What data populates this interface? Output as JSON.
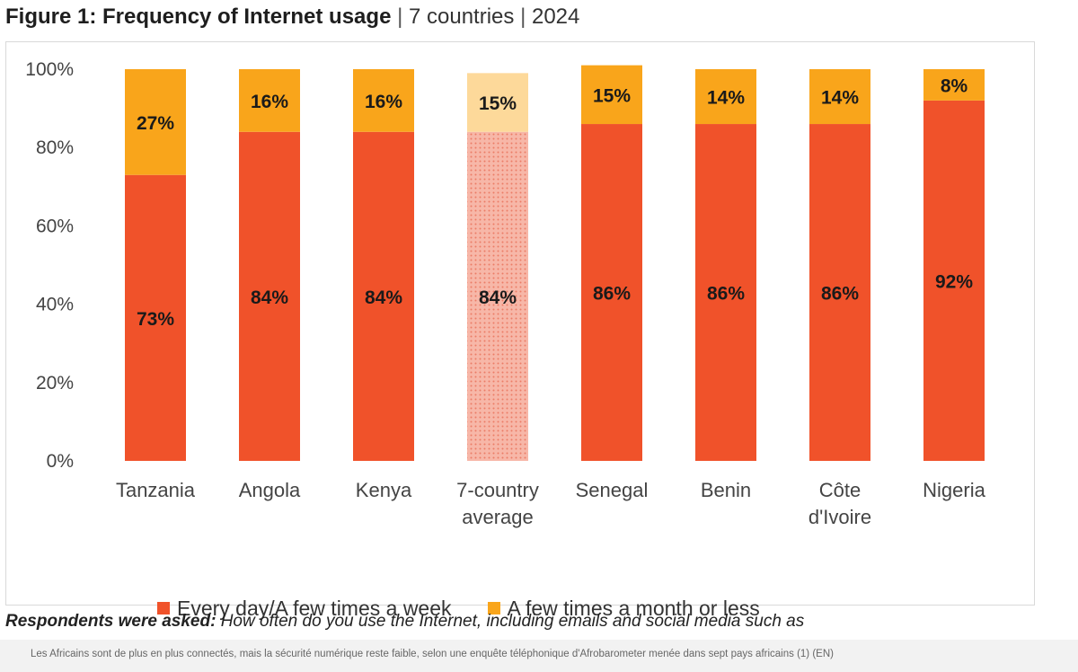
{
  "figure": {
    "title_bold": "Figure 1: Frequency of Internet usage",
    "separator": "|",
    "countries": "7 countries",
    "year": "2024"
  },
  "chart_data": {
    "type": "bar",
    "stacked": true,
    "categories": [
      "Tanzania",
      "Angola",
      "Kenya",
      "7-country average",
      "Senegal",
      "Benin",
      "Côte d'Ivoire",
      "Nigeria"
    ],
    "category_lines": [
      [
        "Tanzania"
      ],
      [
        "Angola"
      ],
      [
        "Kenya"
      ],
      [
        "7-country",
        "average"
      ],
      [
        "Senegal"
      ],
      [
        "Benin"
      ],
      [
        "Côte",
        "d'Ivoire"
      ],
      [
        "Nigeria"
      ]
    ],
    "series": [
      {
        "name": "Every day/A few times a week",
        "values": [
          73,
          84,
          84,
          84,
          86,
          86,
          86,
          92
        ],
        "labels": [
          "73%",
          "84%",
          "84%",
          "84%",
          "86%",
          "86%",
          "86%",
          "92%"
        ]
      },
      {
        "name": "A few times a month or less",
        "values": [
          27,
          16,
          16,
          15,
          15,
          14,
          14,
          8
        ],
        "labels": [
          "27%",
          "16%",
          "16%",
          "15%",
          "15%",
          "14%",
          "14%",
          "8%"
        ]
      }
    ],
    "highlighted_category": "7-country average",
    "ylim": [
      0,
      100
    ],
    "yticks": [
      "0%",
      "20%",
      "40%",
      "60%",
      "80%",
      "100%"
    ],
    "xlabel": "",
    "ylabel": "",
    "grid": false,
    "legend_position": "bottom",
    "colors": {
      "daily": "#f0522a",
      "monthly": "#f9a51b",
      "avg_daily": "#f7b7a8",
      "avg_monthly": "#fdd99a"
    }
  },
  "legend": {
    "daily_label": "Every day/A few times a week",
    "monthly_label": "A few times a month or less"
  },
  "question": {
    "lead": "Respondents were asked:",
    "text": "How often do you use the Internet, including emails and social media such as"
  },
  "caption": "Les Africains sont de plus en plus connectés, mais la sécurité numérique reste faible, selon une enquête téléphonique d'Afrobarometer menée dans sept pays africains (1) (EN)"
}
